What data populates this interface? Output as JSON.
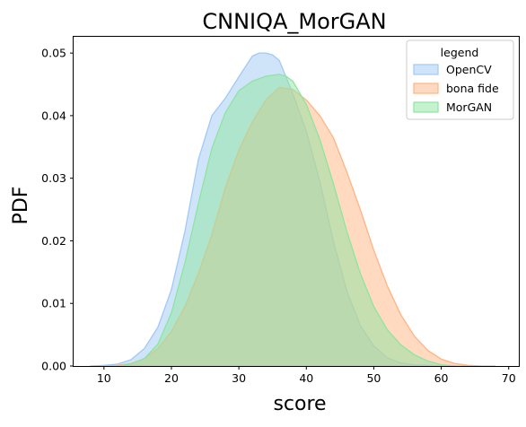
{
  "chart_data": {
    "type": "area",
    "title": "CNNIQA_MorGAN",
    "xlabel": "score",
    "ylabel": "PDF",
    "xlim": [
      5.5,
      71.5
    ],
    "ylim": [
      0,
      0.0526
    ],
    "x_ticks": [
      10,
      20,
      30,
      40,
      50,
      60,
      70
    ],
    "y_ticks": [
      0.0,
      0.01,
      0.02,
      0.03,
      0.04,
      0.05
    ],
    "y_tick_labels": [
      "0.00",
      "0.01",
      "0.02",
      "0.03",
      "0.04",
      "0.05"
    ],
    "grid": false,
    "legend": {
      "title": "legend",
      "position": "top-right"
    },
    "series": [
      {
        "name": "OpenCV",
        "color": "#a1c9f4",
        "x": [
          8,
          10,
          12,
          14,
          16,
          18,
          20,
          22,
          24,
          26,
          28,
          30,
          32,
          33,
          34,
          35,
          36,
          38,
          40,
          42,
          44,
          46,
          48,
          50,
          52,
          54,
          56,
          58,
          60
        ],
        "y": [
          0.0,
          0.0001,
          0.0003,
          0.001,
          0.0028,
          0.0062,
          0.0122,
          0.0215,
          0.033,
          0.04,
          0.0428,
          0.0462,
          0.0495,
          0.05,
          0.05,
          0.0497,
          0.0488,
          0.0435,
          0.0375,
          0.0295,
          0.02,
          0.012,
          0.0065,
          0.0032,
          0.0013,
          0.0005,
          0.0002,
          0.0001,
          0.0
        ]
      },
      {
        "name": "bona fide",
        "color": "#ffb482",
        "x": [
          10,
          12,
          14,
          16,
          18,
          20,
          22,
          24,
          26,
          28,
          30,
          32,
          34,
          36,
          38,
          40,
          42,
          44,
          46,
          48,
          50,
          52,
          54,
          56,
          58,
          60,
          62,
          64,
          66,
          68
        ],
        "y": [
          0.0,
          0.0001,
          0.0004,
          0.0012,
          0.0028,
          0.0055,
          0.0095,
          0.0148,
          0.021,
          0.0285,
          0.0345,
          0.039,
          0.0425,
          0.0445,
          0.0442,
          0.0425,
          0.04,
          0.0365,
          0.031,
          0.025,
          0.0185,
          0.0128,
          0.0082,
          0.0048,
          0.0025,
          0.0011,
          0.0004,
          0.0001,
          0.0,
          0.0
        ]
      },
      {
        "name": "MorGAN",
        "color": "#8de5a1",
        "x": [
          12,
          14,
          16,
          18,
          20,
          22,
          24,
          26,
          28,
          30,
          32,
          34,
          36,
          37,
          38,
          40,
          42,
          44,
          46,
          48,
          50,
          52,
          54,
          56,
          58,
          60,
          62
        ],
        "y": [
          0.0,
          0.0003,
          0.0012,
          0.0035,
          0.0085,
          0.0165,
          0.026,
          0.0348,
          0.0405,
          0.044,
          0.0455,
          0.0463,
          0.0466,
          0.0463,
          0.0455,
          0.0418,
          0.0362,
          0.0292,
          0.0215,
          0.0148,
          0.0095,
          0.0058,
          0.0034,
          0.0018,
          0.0008,
          0.0002,
          0.0
        ]
      }
    ]
  }
}
